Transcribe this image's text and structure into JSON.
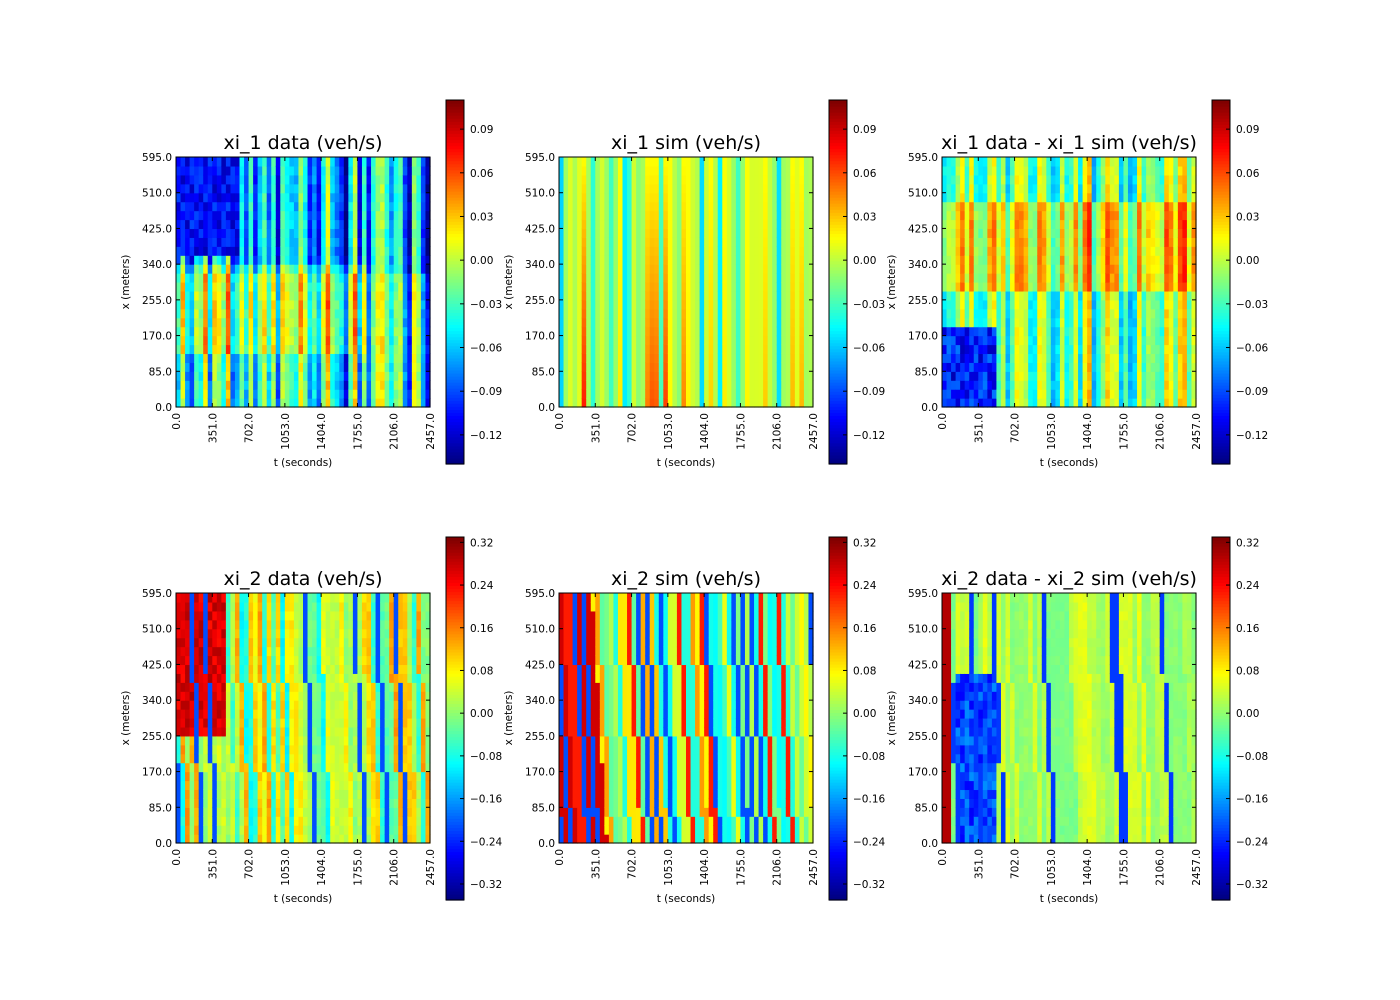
{
  "chart_data": [
    {
      "type": "heatmap",
      "title": "xi_1 data (veh/s)",
      "xlabel": "t (seconds)",
      "ylabel": "x (meters)",
      "xticks": [
        "0.0",
        "351.0",
        "702.0",
        "1053.0",
        "1404.0",
        "1755.0",
        "2106.0",
        "2457.0"
      ],
      "yticks": [
        "0.0",
        "85.0",
        "170.0",
        "255.0",
        "340.0",
        "425.0",
        "510.0",
        "595.0"
      ],
      "xlim": [
        0,
        2457
      ],
      "ylim": [
        0,
        595
      ],
      "colorbar": {
        "ticks": [
          "0.09",
          "0.06",
          "0.03",
          "0.00",
          "−0.03",
          "−0.06",
          "−0.09",
          "−0.12"
        ],
        "range": [
          -0.14,
          0.11
        ]
      },
      "colormap": "jet",
      "pattern": "data1"
    },
    {
      "type": "heatmap",
      "title": "xi_1 sim (veh/s)",
      "xlabel": "t (seconds)",
      "ylabel": "x (meters)",
      "xticks": [
        "0.0",
        "351.0",
        "702.0",
        "1053.0",
        "1404.0",
        "1755.0",
        "2106.0",
        "2457.0"
      ],
      "yticks": [
        "0.0",
        "85.0",
        "170.0",
        "255.0",
        "340.0",
        "425.0",
        "510.0",
        "595.0"
      ],
      "xlim": [
        0,
        2457
      ],
      "ylim": [
        0,
        595
      ],
      "colorbar": {
        "ticks": [
          "0.09",
          "0.06",
          "0.03",
          "0.00",
          "−0.03",
          "−0.06",
          "−0.09",
          "−0.12"
        ],
        "range": [
          -0.14,
          0.11
        ]
      },
      "colormap": "jet",
      "pattern": "sim1"
    },
    {
      "type": "heatmap",
      "title": "xi_1 data - xi_1 sim (veh/s)",
      "xlabel": "t (seconds)",
      "ylabel": "x (meters)",
      "xticks": [
        "0.0",
        "351.0",
        "702.0",
        "1053.0",
        "1404.0",
        "1755.0",
        "2106.0",
        "2457.0"
      ],
      "yticks": [
        "0.0",
        "85.0",
        "170.0",
        "255.0",
        "340.0",
        "425.0",
        "510.0",
        "595.0"
      ],
      "xlim": [
        0,
        2457
      ],
      "ylim": [
        0,
        595
      ],
      "colorbar": {
        "ticks": [
          "0.09",
          "0.06",
          "0.03",
          "0.00",
          "−0.03",
          "−0.06",
          "−0.09",
          "−0.12"
        ],
        "range": [
          -0.14,
          0.11
        ]
      },
      "colormap": "jet",
      "pattern": "diff1"
    },
    {
      "type": "heatmap",
      "title": "xi_2 data (veh/s)",
      "xlabel": "t (seconds)",
      "ylabel": "x (meters)",
      "xticks": [
        "0.0",
        "351.0",
        "702.0",
        "1053.0",
        "1404.0",
        "1755.0",
        "2106.0",
        "2457.0"
      ],
      "yticks": [
        "0.0",
        "85.0",
        "170.0",
        "255.0",
        "340.0",
        "425.0",
        "510.0",
        "595.0"
      ],
      "xlim": [
        0,
        2457
      ],
      "ylim": [
        0,
        595
      ],
      "colorbar": {
        "ticks": [
          "0.32",
          "0.24",
          "0.16",
          "0.08",
          "0.00",
          "−0.08",
          "−0.16",
          "−0.24",
          "−0.32"
        ],
        "range": [
          -0.35,
          0.33
        ]
      },
      "colormap": "jet",
      "pattern": "data2"
    },
    {
      "type": "heatmap",
      "title": "xi_2 sim (veh/s)",
      "xlabel": "t (seconds)",
      "ylabel": "x (meters)",
      "xticks": [
        "0.0",
        "351.0",
        "702.0",
        "1053.0",
        "1404.0",
        "1755.0",
        "2106.0",
        "2457.0"
      ],
      "yticks": [
        "0.0",
        "85.0",
        "170.0",
        "255.0",
        "340.0",
        "425.0",
        "510.0",
        "595.0"
      ],
      "xlim": [
        0,
        2457
      ],
      "ylim": [
        0,
        595
      ],
      "colorbar": {
        "ticks": [
          "0.32",
          "0.24",
          "0.16",
          "0.08",
          "0.00",
          "−0.08",
          "−0.16",
          "−0.24",
          "−0.32"
        ],
        "range": [
          -0.35,
          0.33
        ]
      },
      "colormap": "jet",
      "pattern": "sim2"
    },
    {
      "type": "heatmap",
      "title": "xi_2 data - xi_2 sim (veh/s)",
      "xlabel": "t (seconds)",
      "ylabel": "x (meters)",
      "xticks": [
        "0.0",
        "351.0",
        "702.0",
        "1053.0",
        "1404.0",
        "1755.0",
        "2106.0",
        "2457.0"
      ],
      "yticks": [
        "0.0",
        "85.0",
        "170.0",
        "255.0",
        "340.0",
        "425.0",
        "510.0",
        "595.0"
      ],
      "xlim": [
        0,
        2457
      ],
      "ylim": [
        0,
        595
      ],
      "colorbar": {
        "ticks": [
          "0.32",
          "0.24",
          "0.16",
          "0.08",
          "0.00",
          "−0.08",
          "−0.16",
          "−0.24",
          "−0.32"
        ],
        "range": [
          -0.35,
          0.33
        ]
      },
      "colormap": "jet",
      "pattern": "diff2"
    }
  ]
}
